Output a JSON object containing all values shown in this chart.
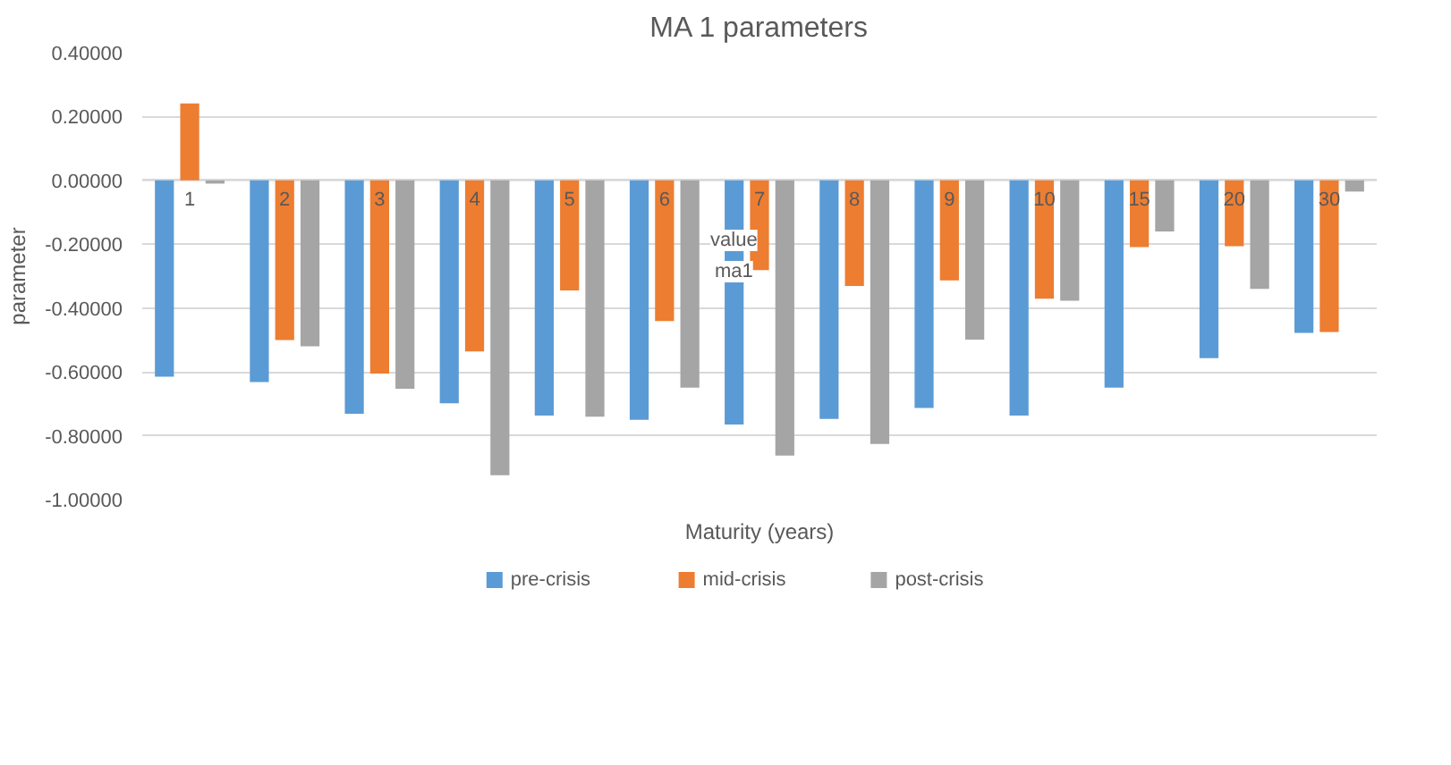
{
  "chart_data": {
    "type": "bar",
    "title": "MA 1 parameters",
    "xlabel": "Maturity (years)",
    "ylabel": "parameter",
    "categories": [
      "1",
      "2",
      "3",
      "4",
      "5",
      "6",
      "7",
      "8",
      "9",
      "10",
      "15",
      "20",
      "30"
    ],
    "series": [
      {
        "name": "pre-crisis",
        "color": "#5b9bd5",
        "values": [
          -0.615,
          -0.632,
          -0.731,
          -0.698,
          -0.737,
          -0.75,
          -0.765,
          -0.747,
          -0.713,
          -0.737,
          -0.649,
          -0.557,
          -0.478
        ]
      },
      {
        "name": "mid-crisis",
        "color": "#ed7d31",
        "values": [
          0.241,
          -0.5,
          -0.605,
          -0.536,
          -0.345,
          -0.441,
          -0.281,
          -0.331,
          -0.313,
          -0.371,
          -0.209,
          -0.206,
          -0.475
        ]
      },
      {
        "name": "post-crisis",
        "color": "#a5a5a5",
        "values": [
          -0.01,
          -0.52,
          -0.653,
          -0.924,
          -0.74,
          -0.649,
          -0.862,
          -0.826,
          -0.499,
          -0.377,
          -0.16,
          -0.34,
          -0.035
        ]
      }
    ],
    "ylim": [
      -1.0,
      0.4
    ],
    "yticks": [
      {
        "value": -1.0,
        "label": "-1.00000"
      },
      {
        "value": -0.8,
        "label": "-0.80000"
      },
      {
        "value": -0.6,
        "label": "-0.60000"
      },
      {
        "value": -0.4,
        "label": "-0.40000"
      },
      {
        "value": -0.2,
        "label": "-0.20000"
      },
      {
        "value": 0,
        "label": "0.00000"
      },
      {
        "value": 0.2,
        "label": "0.20000"
      },
      {
        "value": 0.4,
        "label": "0.40000"
      }
    ],
    "grid": "y",
    "legend": "bottom",
    "annotations": [
      "value",
      "ma1"
    ]
  }
}
